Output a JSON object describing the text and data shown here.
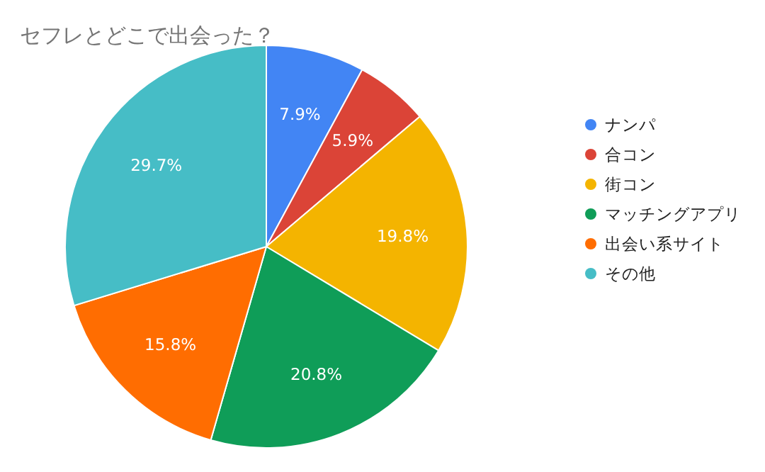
{
  "chart_data": {
    "type": "pie",
    "title": "セフレとどこで出会った？",
    "categories": [
      "ナンパ",
      "合コン",
      "街コン",
      "マッチングアプリ",
      "出会い系サイト",
      "その他"
    ],
    "values": [
      7.9,
      5.9,
      19.8,
      20.8,
      15.8,
      29.7
    ],
    "colors": [
      "#4285f4",
      "#db4437",
      "#f4b400",
      "#0f9d58",
      "#ff6d01",
      "#46bdc6"
    ],
    "value_labels": [
      "7.9%",
      "5.9%",
      "19.8%",
      "20.8%",
      "15.8%",
      "29.7%"
    ],
    "legend": "right"
  }
}
